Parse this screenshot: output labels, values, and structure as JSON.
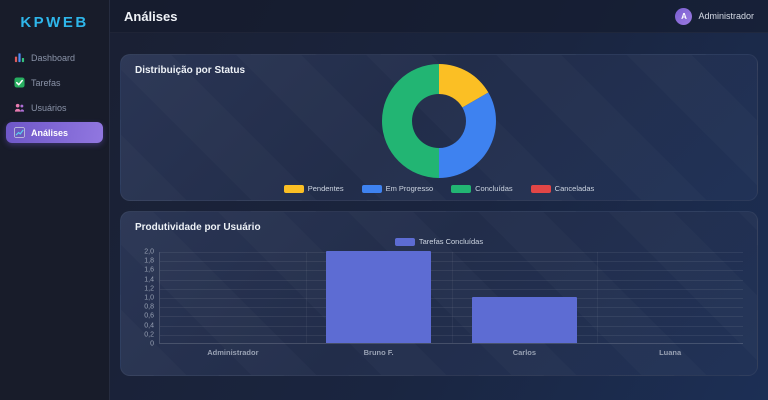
{
  "app": {
    "logo": "KPWEB"
  },
  "header": {
    "title": "Análises",
    "user": {
      "initial": "A",
      "name": "Administrador"
    }
  },
  "sidebar": {
    "items": [
      {
        "label": "Dashboard",
        "icon": "dashboard-icon",
        "active": false
      },
      {
        "label": "Tarefas",
        "icon": "tasks-icon",
        "active": false
      },
      {
        "label": "Usuários",
        "icon": "users-icon",
        "active": false
      },
      {
        "label": "Análises",
        "icon": "analytics-icon",
        "active": true
      }
    ]
  },
  "cards": [
    {
      "title": "Distribuição por Status"
    },
    {
      "title": "Produtividade por Usuário"
    }
  ],
  "chart_data": [
    {
      "type": "pie",
      "subtype": "donut",
      "title": "Distribuição por Status",
      "labels": [
        "Pendentes",
        "Em Progresso",
        "Concluídas",
        "Canceladas"
      ],
      "values": [
        1,
        2,
        3,
        0
      ],
      "colors": [
        "#fbbf24",
        "#3e82f0",
        "#22b573",
        "#e14646"
      ],
      "legend_position": "bottom"
    },
    {
      "type": "bar",
      "title": "Produtividade por Usuário",
      "categories": [
        "Administrador",
        "Bruno F.",
        "Carlos",
        "Luana"
      ],
      "series": [
        {
          "name": "Tarefas Concluídas",
          "values": [
            0,
            2,
            1,
            0
          ],
          "color": "#5d6cd3"
        }
      ],
      "ylim": [
        0,
        2
      ],
      "yticks": [
        "2,0",
        "1,8",
        "1,6",
        "1,4",
        "1,2",
        "1,0",
        "0,8",
        "0,6",
        "0,4",
        "0,2",
        "0"
      ],
      "grid": true,
      "legend_position": "top"
    }
  ],
  "colors": {
    "accent_purple": "#7c5fd6",
    "logo_cyan": "#2eb6ea",
    "bar": "#5d6cd3",
    "pie_yellow": "#fbbf24",
    "pie_blue": "#3e82f0",
    "pie_green": "#22b573",
    "pie_red": "#e14646"
  }
}
